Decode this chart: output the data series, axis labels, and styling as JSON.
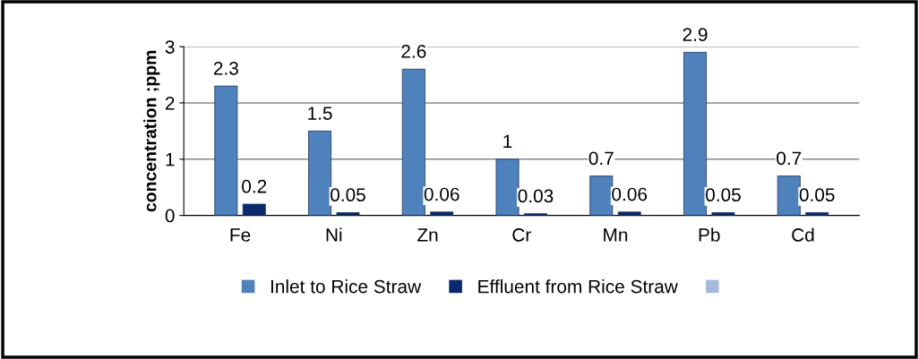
{
  "chart_data": {
    "type": "bar",
    "ylabel": "concentration ;ppm",
    "categories": [
      "Fe",
      "Ni",
      "Zn",
      "Cr",
      "Mn",
      "Pb",
      "Cd"
    ],
    "series": [
      {
        "name": "Inlet to Rice Straw",
        "color": "#4f81bd",
        "values": [
          2.3,
          1.5,
          2.6,
          1,
          0.7,
          2.9,
          0.7
        ]
      },
      {
        "name": "Effluent from Rice Straw",
        "color": "#0b2a6b",
        "values": [
          0.2,
          0.05,
          0.06,
          0.03,
          0.06,
          0.05,
          0.05
        ]
      },
      {
        "color": "#a6b9dc",
        "values": [
          null,
          null,
          null,
          null,
          null,
          null,
          null
        ]
      }
    ],
    "ylim": [
      0,
      3
    ],
    "yticks": [
      0,
      1,
      2,
      3
    ],
    "grid": "y",
    "legend": "bottom",
    "data_labels": true
  }
}
